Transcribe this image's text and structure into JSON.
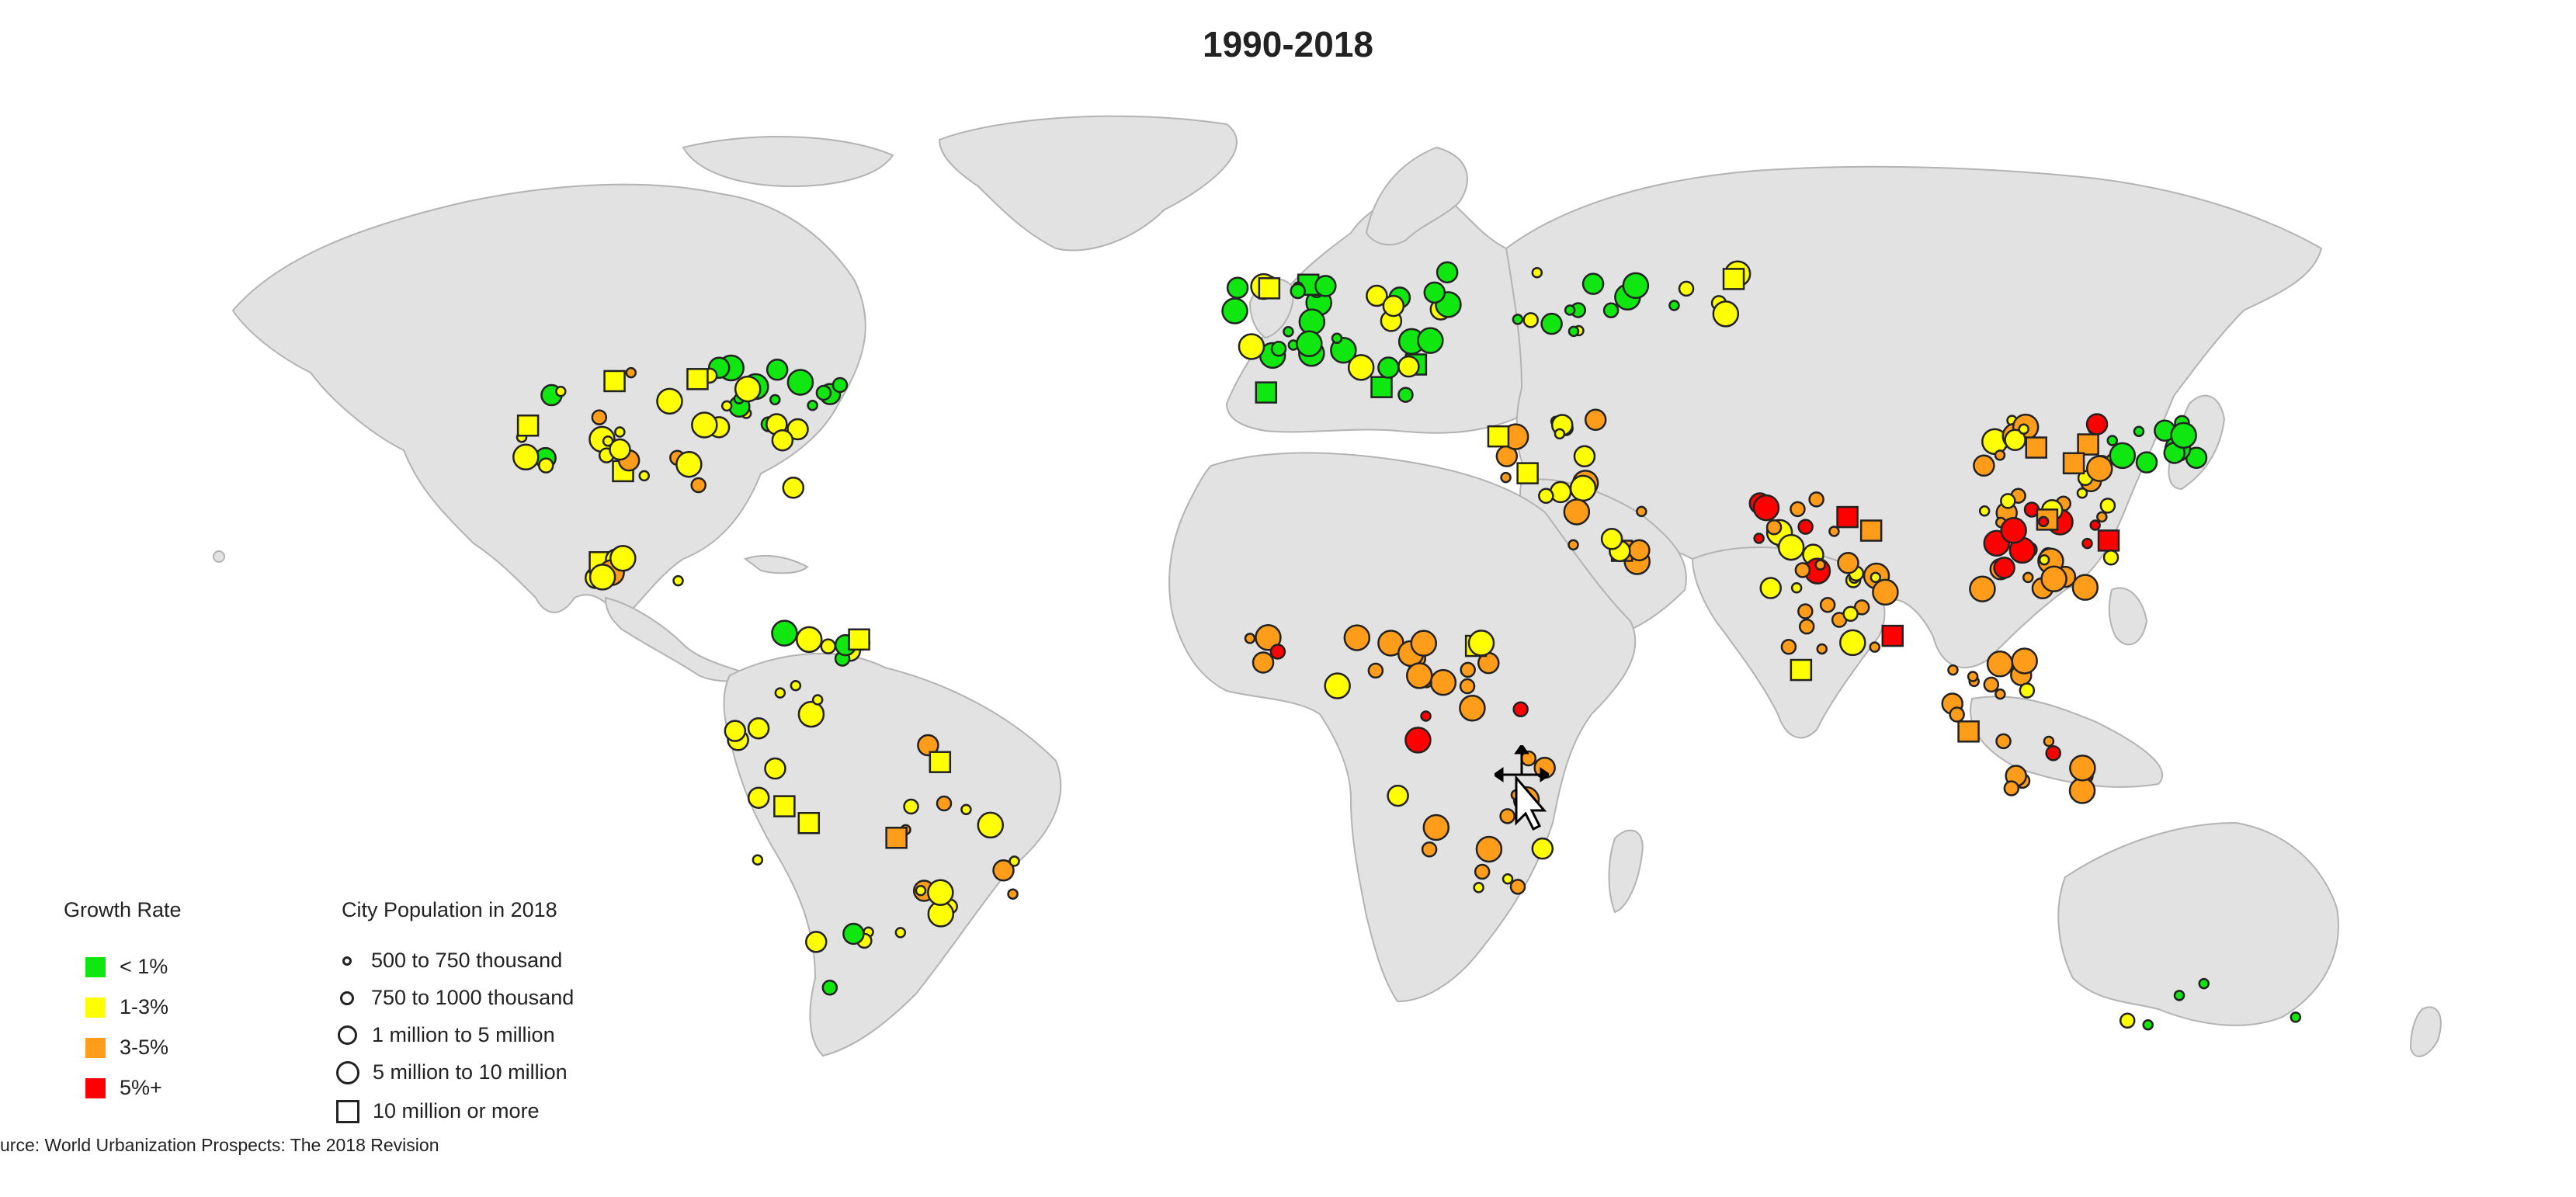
{
  "title": "1990-2018",
  "source_note": "urce: World Urbanization Prospects: The 2018 Revision",
  "colors": {
    "land": "#e2e2e2",
    "border": "#b3b3b3",
    "lt1": "#10e610",
    "g1_3": "#ffff00",
    "g3_5": "#ff9d1a",
    "g5plus": "#ff0000"
  },
  "legend": {
    "growth_title": "Growth Rate",
    "growth_items": [
      {
        "label": "< 1%",
        "color": "#10e610"
      },
      {
        "label": "1-3%",
        "color": "#ffff00"
      },
      {
        "label": "3-5%",
        "color": "#ff9d1a"
      },
      {
        "label": "5%+",
        "color": "#ff0000"
      }
    ],
    "size_title": "City Population in 2018",
    "size_items": [
      {
        "label": "500 to 750 thousand",
        "shape": "circle"
      },
      {
        "label": "750 to 1000 thousand",
        "shape": "circle"
      },
      {
        "label": "1 million to 5 million",
        "shape": "circle"
      },
      {
        "label": "5 million to 10 million",
        "shape": "circle"
      },
      {
        "label": "10 million or more",
        "shape": "square"
      }
    ]
  },
  "cursor_icon": "move-arrows-with-pointer"
}
